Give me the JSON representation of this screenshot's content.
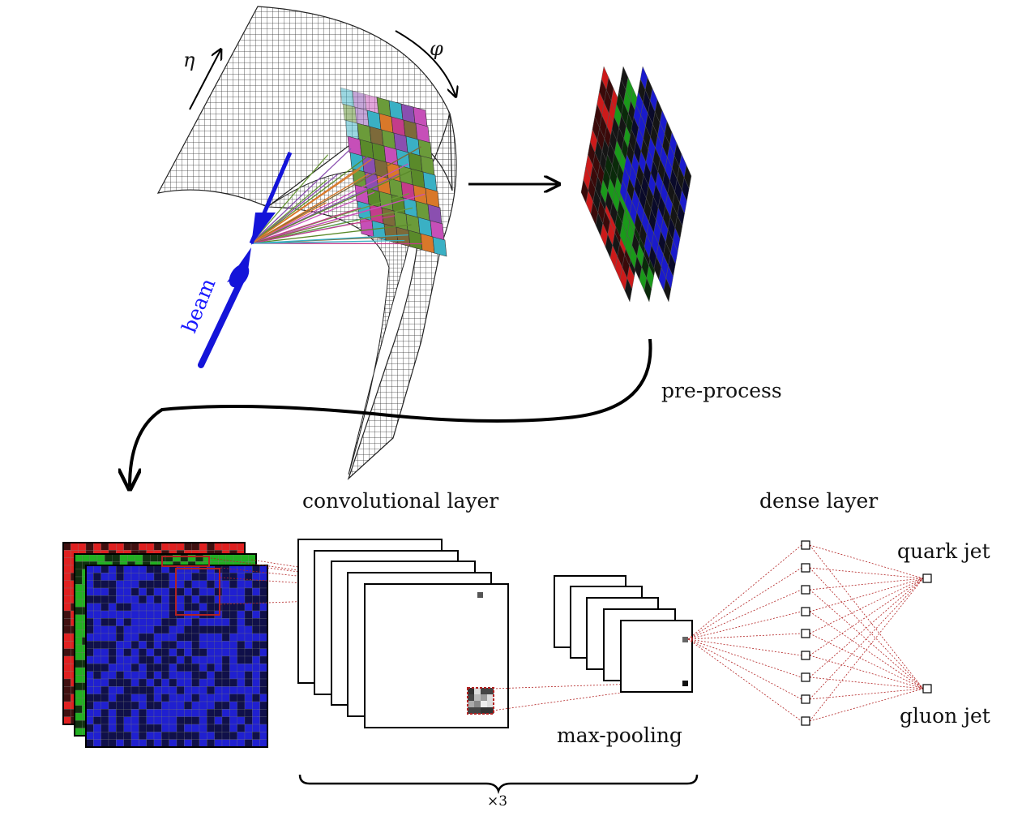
{
  "labels": {
    "eta": "η",
    "phi": "φ",
    "beam": "beam",
    "preprocess": "pre-process",
    "conv": "convolutional layer",
    "dense": "dense layer",
    "maxpool": "max-pooling",
    "quark": "quark jet",
    "gluon": "gluon jet",
    "repeat": "×3"
  },
  "colors": {
    "red_channel": "#cc1a1a",
    "green_channel": "#1a9a1a",
    "blue_channel": "#1a1acc",
    "beam": "#1414d9",
    "connection": "#b22222",
    "grid": "#333333"
  }
}
